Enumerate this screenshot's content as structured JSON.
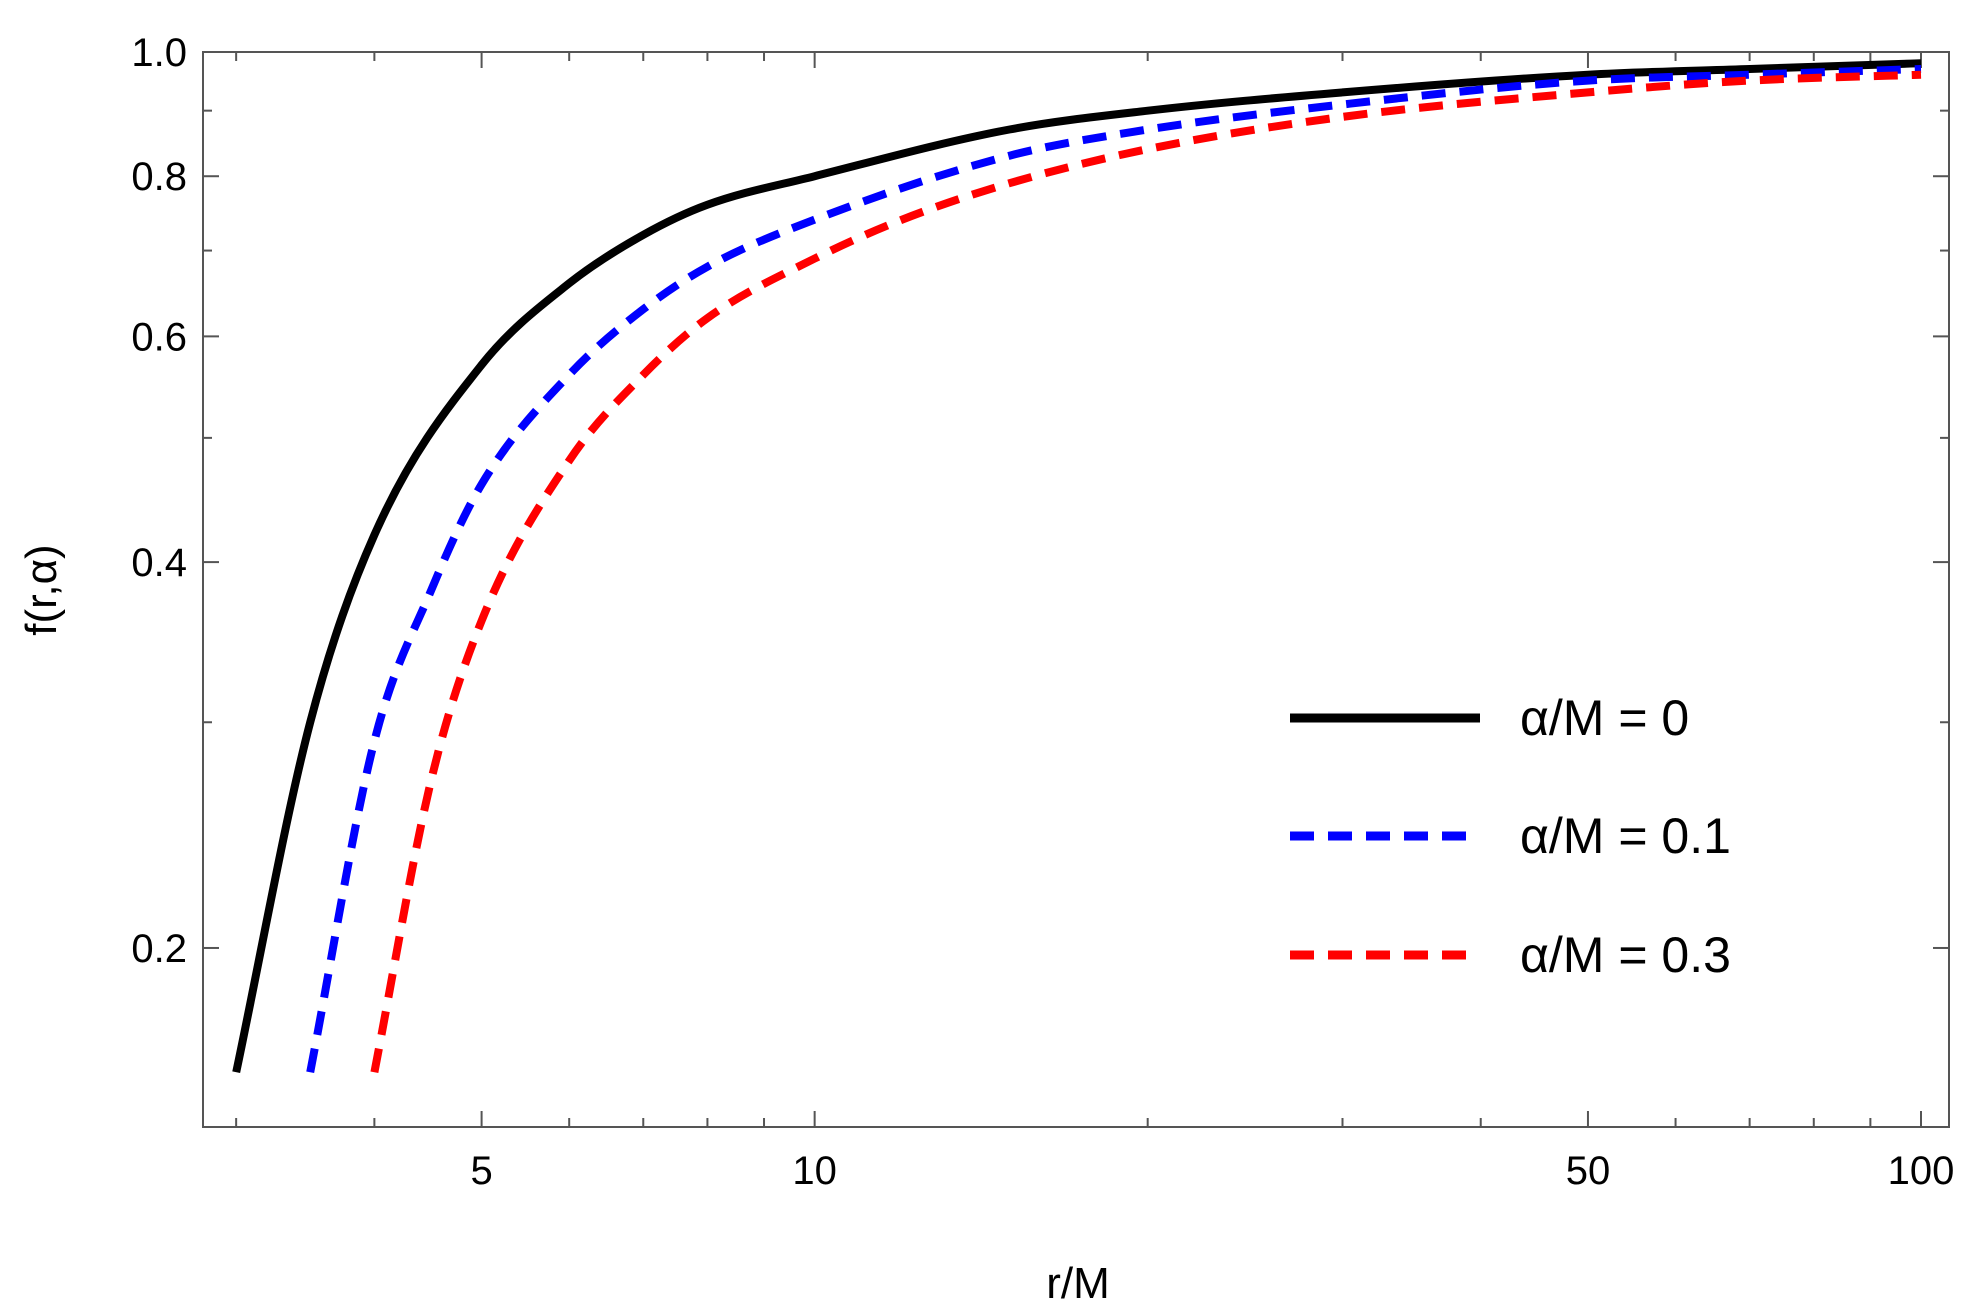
{
  "chart_data": {
    "type": "line",
    "title": "",
    "xlabel": "r/M",
    "ylabel": "f(r,α)",
    "xscale": "log",
    "yscale": "log",
    "xlim": [
      2.8,
      106
    ],
    "ylim": [
      0.145,
      1.0
    ],
    "grid": false,
    "legend_position": "center-right",
    "x_ticks": [
      {
        "value": 5,
        "label": "5"
      },
      {
        "value": 10,
        "label": "10"
      },
      {
        "value": 50,
        "label": "50"
      },
      {
        "value": 100,
        "label": "100"
      }
    ],
    "y_ticks": [
      {
        "value": 0.2,
        "label": "0.2"
      },
      {
        "value": 0.4,
        "label": "0.4"
      },
      {
        "value": 0.6,
        "label": "0.6"
      },
      {
        "value": 0.8,
        "label": "0.8"
      },
      {
        "value": 1.0,
        "label": "1.0"
      }
    ],
    "series": [
      {
        "name": "α/M = 0",
        "alpha": 0,
        "color": "#000000",
        "style": "solid",
        "x": [
          3.0,
          3.5,
          4.0,
          5.0,
          6.0,
          7.0,
          8.0,
          10.0,
          15.0,
          20.0,
          30.0,
          50.0,
          70.0,
          100.0
        ],
        "y": [
          0.16,
          0.3,
          0.42,
          0.57,
          0.66,
          0.72,
          0.76,
          0.8,
          0.87,
          0.9,
          0.93,
          0.96,
          0.97,
          0.98
        ]
      },
      {
        "name": "α/M = 0.1",
        "alpha": 0.1,
        "color": "#0000ff",
        "style": "dashed",
        "x": [
          3.5,
          4.0,
          4.5,
          5.0,
          6.0,
          7.0,
          8.0,
          10.0,
          15.0,
          20.0,
          30.0,
          50.0,
          70.0,
          100.0
        ],
        "y": [
          0.16,
          0.29,
          0.38,
          0.46,
          0.56,
          0.63,
          0.68,
          0.74,
          0.83,
          0.87,
          0.91,
          0.95,
          0.96,
          0.97
        ]
      },
      {
        "name": "α/M = 0.3",
        "alpha": 0.3,
        "color": "#ff0000",
        "style": "dashed",
        "x": [
          4.0,
          4.5,
          5.0,
          6.0,
          7.0,
          8.0,
          10.0,
          12.0,
          15.0,
          20.0,
          30.0,
          50.0,
          70.0,
          100.0
        ],
        "y": [
          0.16,
          0.27,
          0.36,
          0.48,
          0.56,
          0.62,
          0.69,
          0.74,
          0.79,
          0.84,
          0.89,
          0.93,
          0.95,
          0.96
        ]
      }
    ]
  }
}
